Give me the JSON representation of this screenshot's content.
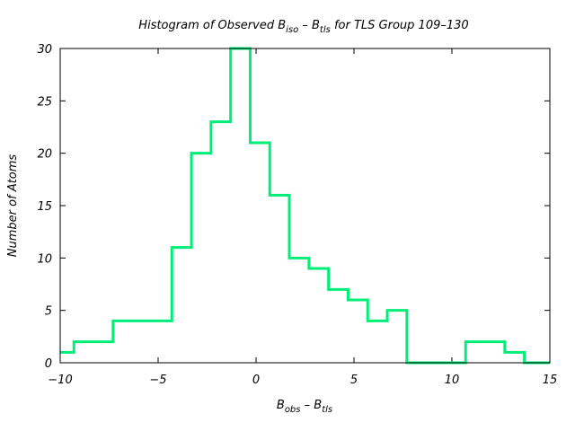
{
  "chart_data": {
    "type": "histogram",
    "title": {
      "prefix": "Histogram of Observed B",
      "sub1": "iso",
      "mid": " – B",
      "sub2": "tls",
      "suffix": " for TLS Group 109–130"
    },
    "xlabel": {
      "base1": "B",
      "sub1": "obs",
      "mid": " – B",
      "sub2": "tls"
    },
    "ylabel": "Number of Atoms",
    "xlim": [
      -10,
      15
    ],
    "ylim": [
      0,
      30
    ],
    "xticks": [
      -10,
      -5,
      0,
      5,
      10,
      15
    ],
    "xtick_labels": [
      "−10",
      "−5",
      "0",
      "5",
      "10",
      "15"
    ],
    "yticks": [
      0,
      5,
      10,
      15,
      20,
      25,
      30
    ],
    "ytick_labels": [
      "0",
      "5",
      "10",
      "15",
      "20",
      "25",
      "30"
    ],
    "bin_edges": [
      -10,
      -9.3,
      -7.3,
      -4.3,
      -3.3,
      -2.3,
      -1.3,
      -0.3,
      0.7,
      1.7,
      2.7,
      3.7,
      4.7,
      5.7,
      6.7,
      7.7,
      10.7,
      11.7,
      12.7,
      13.7,
      15
    ],
    "counts": [
      1,
      2,
      4,
      11,
      20,
      23,
      30,
      21,
      16,
      10,
      9,
      7,
      6,
      4,
      5,
      0,
      2,
      2,
      1,
      0
    ],
    "line_color": "#00ee77",
    "grid": false
  }
}
